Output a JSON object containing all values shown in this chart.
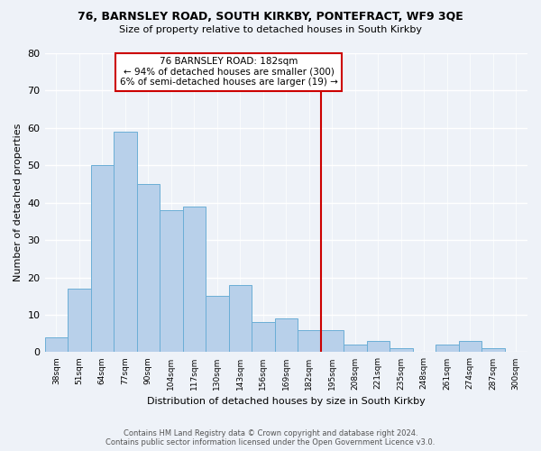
{
  "title1": "76, BARNSLEY ROAD, SOUTH KIRKBY, PONTEFRACT, WF9 3QE",
  "title2": "Size of property relative to detached houses in South Kirkby",
  "xlabel": "Distribution of detached houses by size in South Kirkby",
  "ylabel": "Number of detached properties",
  "bin_labels": [
    "38sqm",
    "51sqm",
    "64sqm",
    "77sqm",
    "90sqm",
    "104sqm",
    "117sqm",
    "130sqm",
    "143sqm",
    "156sqm",
    "169sqm",
    "182sqm",
    "195sqm",
    "208sqm",
    "221sqm",
    "235sqm",
    "248sqm",
    "261sqm",
    "274sqm",
    "287sqm",
    "300sqm"
  ],
  "bar_values": [
    4,
    17,
    50,
    59,
    45,
    38,
    39,
    15,
    18,
    8,
    9,
    6,
    6,
    2,
    3,
    1,
    0,
    2,
    3,
    1,
    0
  ],
  "bar_color": "#b8d0ea",
  "bar_edge_color": "#6baed6",
  "vline_color": "#cc0000",
  "annotation_title": "76 BARNSLEY ROAD: 182sqm",
  "annotation_line1": "← 94% of detached houses are smaller (300)",
  "annotation_line2": "6% of semi-detached houses are larger (19) →",
  "annotation_box_color": "white",
  "annotation_box_edge": "#cc0000",
  "ylim": [
    0,
    80
  ],
  "yticks": [
    0,
    10,
    20,
    30,
    40,
    50,
    60,
    70,
    80
  ],
  "footer1": "Contains HM Land Registry data © Crown copyright and database right 2024.",
  "footer2": "Contains public sector information licensed under the Open Government Licence v3.0.",
  "bg_color": "#eef2f8"
}
